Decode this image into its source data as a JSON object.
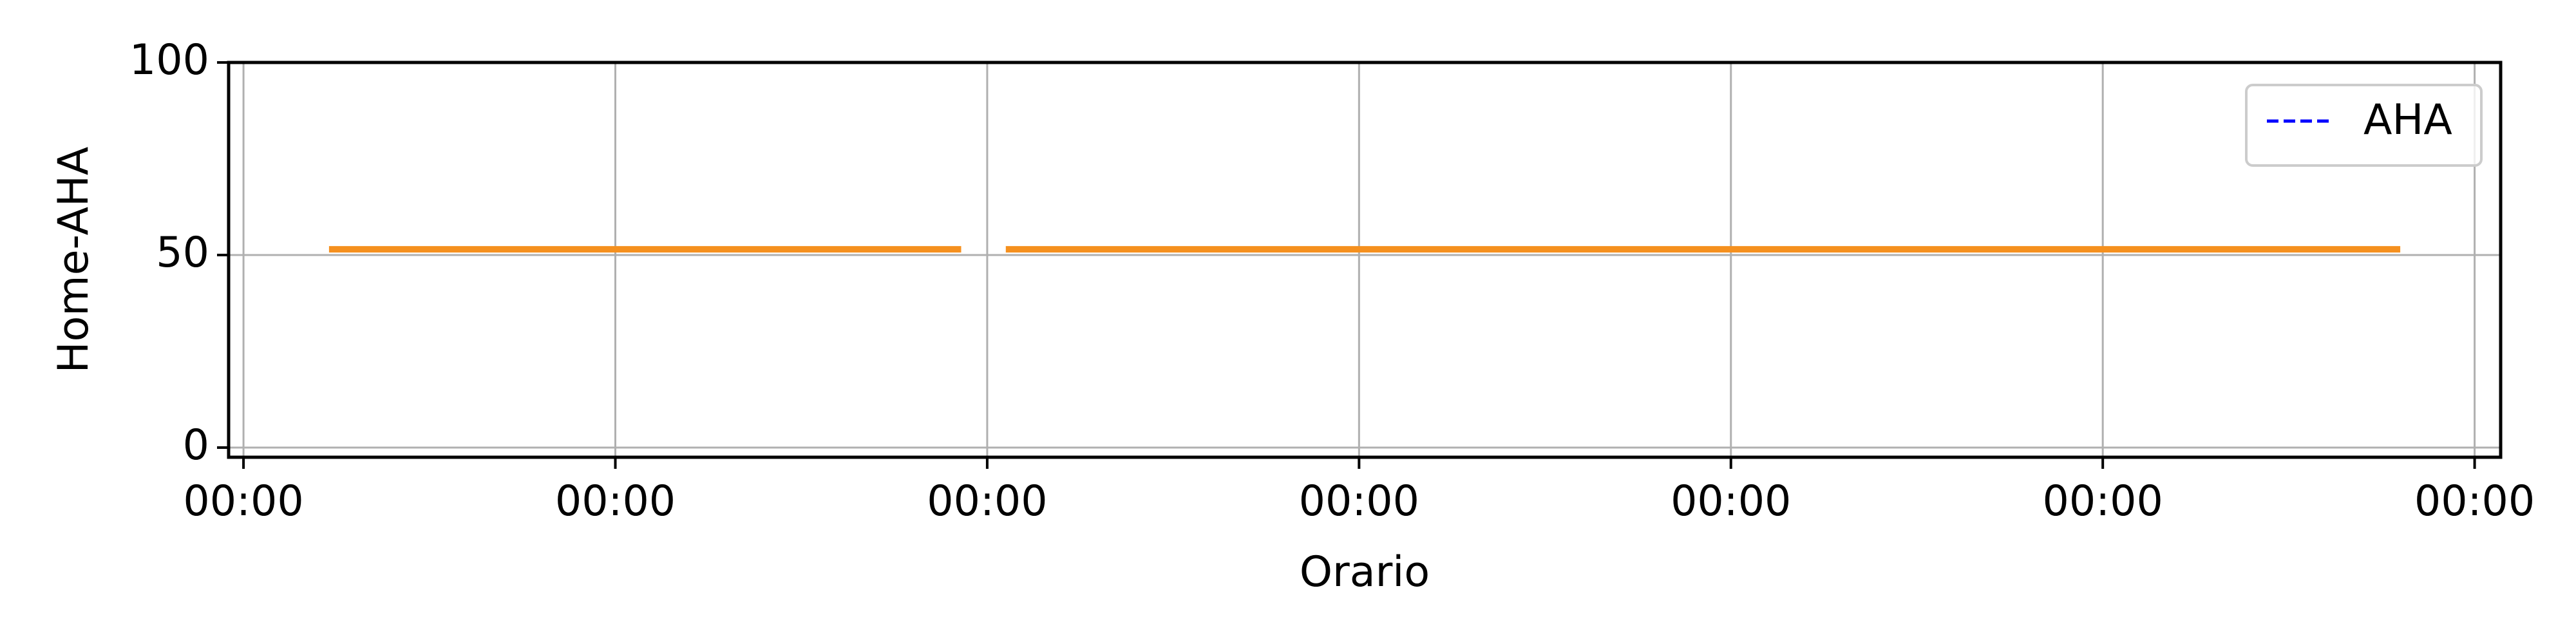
{
  "chart_data": {
    "type": "line",
    "title": "",
    "xlabel": "Orario",
    "ylabel": "Home-AHA",
    "ylim": [
      0,
      100
    ],
    "xlim": [
      -0.04,
      6.07
    ],
    "yticks": [
      0,
      50,
      100
    ],
    "y_tick_labels": [
      "0",
      "50",
      "100"
    ],
    "xticks": [
      0,
      1,
      2,
      3,
      4,
      5,
      6
    ],
    "x_tick_labels": [
      "00:00",
      "00:00",
      "00:00",
      "00:00",
      "00:00",
      "00:00",
      "00:00"
    ],
    "grid": true,
    "legend_position": "top-right",
    "series": [
      {
        "name": "AHA",
        "style": "dashed",
        "color": "#0000ff",
        "x": [
          -0.04,
          6.07
        ],
        "y": [
          100,
          100
        ]
      },
      {
        "name": "",
        "style": "solid",
        "color": "#f5901e",
        "segments": [
          {
            "x": [
              0.23,
              1.93
            ],
            "y": [
              51.5,
              51.5
            ]
          },
          {
            "x": [
              2.05,
              5.8
            ],
            "y": [
              51.5,
              51.5
            ]
          }
        ]
      }
    ]
  }
}
